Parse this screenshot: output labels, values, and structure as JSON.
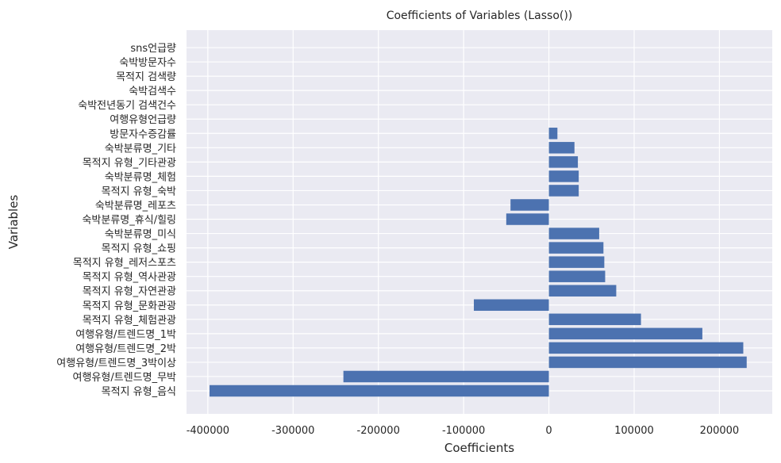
{
  "chart_data": {
    "type": "bar",
    "orientation": "horizontal",
    "title": "Coefficients of Variables (Lasso())",
    "xlabel": "Coefficients",
    "ylabel": "Variables",
    "xlim": [
      -425000,
      262000
    ],
    "xticks": [
      -400000,
      -300000,
      -200000,
      -100000,
      0,
      100000,
      200000
    ],
    "xtick_labels": [
      "-400000",
      "-300000",
      "-200000",
      "-100000",
      "0",
      "100000",
      "200000"
    ],
    "grid": true,
    "categories": [
      "목적지 유형_음식",
      "여행유형/트렌드명_무박",
      "여행유형/트렌드명_3박이상",
      "여행유형/트렌드명_2박",
      "여행유형/트렌드명_1박",
      "목적지 유형_체험관광",
      "목적지 유형_문화관광",
      "목적지 유형_자연관광",
      "목적지 유형_역사관광",
      "목적지 유형_레저스포츠",
      "목적지 유형_쇼핑",
      "숙박분류명_미식",
      "숙박분류명_휴식/힐링",
      "숙박분류명_레포츠",
      "목적지 유형_숙박",
      "숙박분류명_체험",
      "목적지 유형_기타관광",
      "숙박분류명_기타",
      "방문자수증감률",
      "여행유형언급량",
      "숙박전년동기 검색건수",
      "숙박검색수",
      "목적지 검색량",
      "숙박방문자수",
      "sns언급량"
    ],
    "values": [
      -398000,
      -241000,
      232000,
      228000,
      180000,
      108000,
      -88000,
      79000,
      66000,
      65000,
      64000,
      59000,
      -50000,
      -45000,
      35000,
      35000,
      34000,
      30000,
      10000,
      0,
      0,
      0,
      0,
      0,
      0
    ],
    "bar_color": "#4c72b0",
    "background_color": "#eaeaf2"
  }
}
